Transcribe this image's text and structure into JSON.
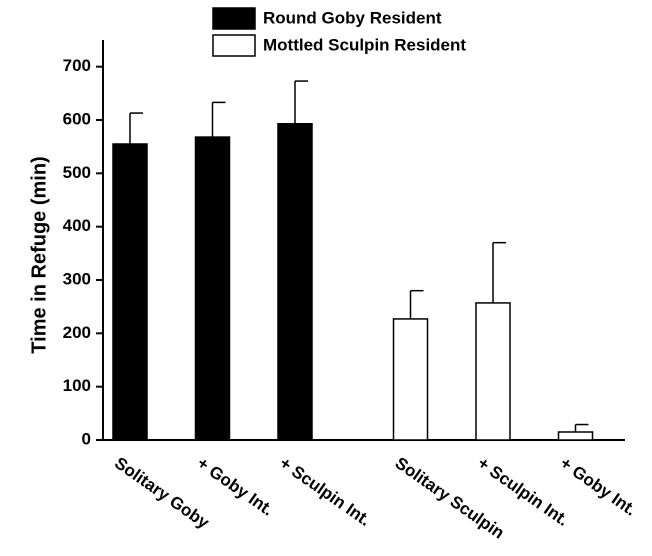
{
  "chart_data": {
    "type": "bar",
    "y_label": "Time in Refuge (min)",
    "categories": [
      "Solitary Goby",
      "+ Goby Int.",
      "+ Sculpin Int.",
      "Solitary Sculpin",
      "+ Sculpin Int.",
      "+ Goby Int."
    ],
    "series": [
      {
        "name": "Round Goby Resident",
        "color": "#000000",
        "values": [
          555,
          568,
          593,
          null,
          null,
          null
        ],
        "errors": [
          58,
          65,
          80,
          null,
          null,
          null
        ]
      },
      {
        "name": "Mottled Sculpin Resident",
        "color": "#ffffff",
        "values": [
          null,
          null,
          null,
          227,
          257,
          15
        ],
        "errors": [
          null,
          null,
          null,
          53,
          113,
          14
        ]
      }
    ],
    "ylim": [
      0,
      750
    ],
    "yticks": [
      0,
      100,
      200,
      300,
      400,
      500,
      600,
      700
    ],
    "grid": false
  }
}
